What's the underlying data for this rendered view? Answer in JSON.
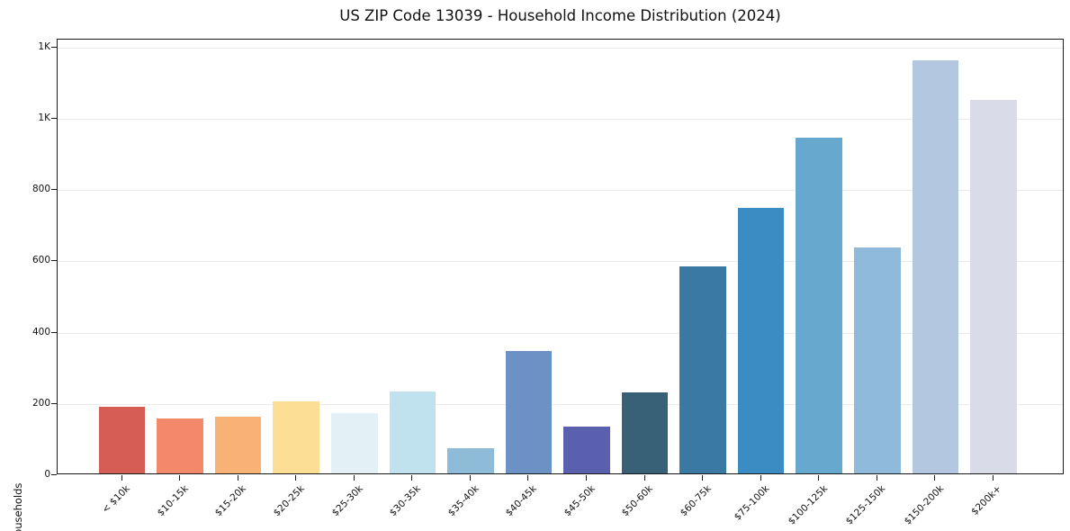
{
  "chart_data": {
    "type": "bar",
    "title": "US ZIP Code 13039 - Household Income Distribution (2024)",
    "xlabel": "",
    "ylabel": "Households",
    "categories": [
      "< $10k",
      "$10-15k",
      "$15-20k",
      "$20-25k",
      "$25-30k",
      "$30-35k",
      "$35-40k",
      "$40-45k",
      "$45-50k",
      "$50-60k",
      "$60-75k",
      "$75-100k",
      "$100-125k",
      "$125-150k",
      "$150-200k",
      "$200k+"
    ],
    "values": [
      187,
      153,
      159,
      203,
      170,
      231,
      71,
      344,
      132,
      228,
      581,
      745,
      942,
      633,
      1159,
      1048
    ],
    "bar_colors": [
      "#d65d55",
      "#f3886a",
      "#f9b275",
      "#fcdf95",
      "#e3f0f6",
      "#c0e1ee",
      "#8ebbd8",
      "#6c92c5",
      "#5b60ae",
      "#386178",
      "#3a79a1",
      "#3a8cc3",
      "#66a8ce",
      "#90badb",
      "#b4c7e0",
      "#dadbe8"
    ],
    "ylim": [
      0,
      1222
    ],
    "yticks": {
      "values": [
        0,
        200,
        400,
        600,
        800,
        1000,
        1200
      ],
      "labels": [
        "0",
        "200",
        "400",
        "600",
        "800",
        "1K",
        "1K"
      ]
    },
    "grid": "horizontal",
    "legend": "none",
    "background_color": "#ffffff",
    "text_color": "#111111",
    "gridline_color": "#eaeaea"
  }
}
